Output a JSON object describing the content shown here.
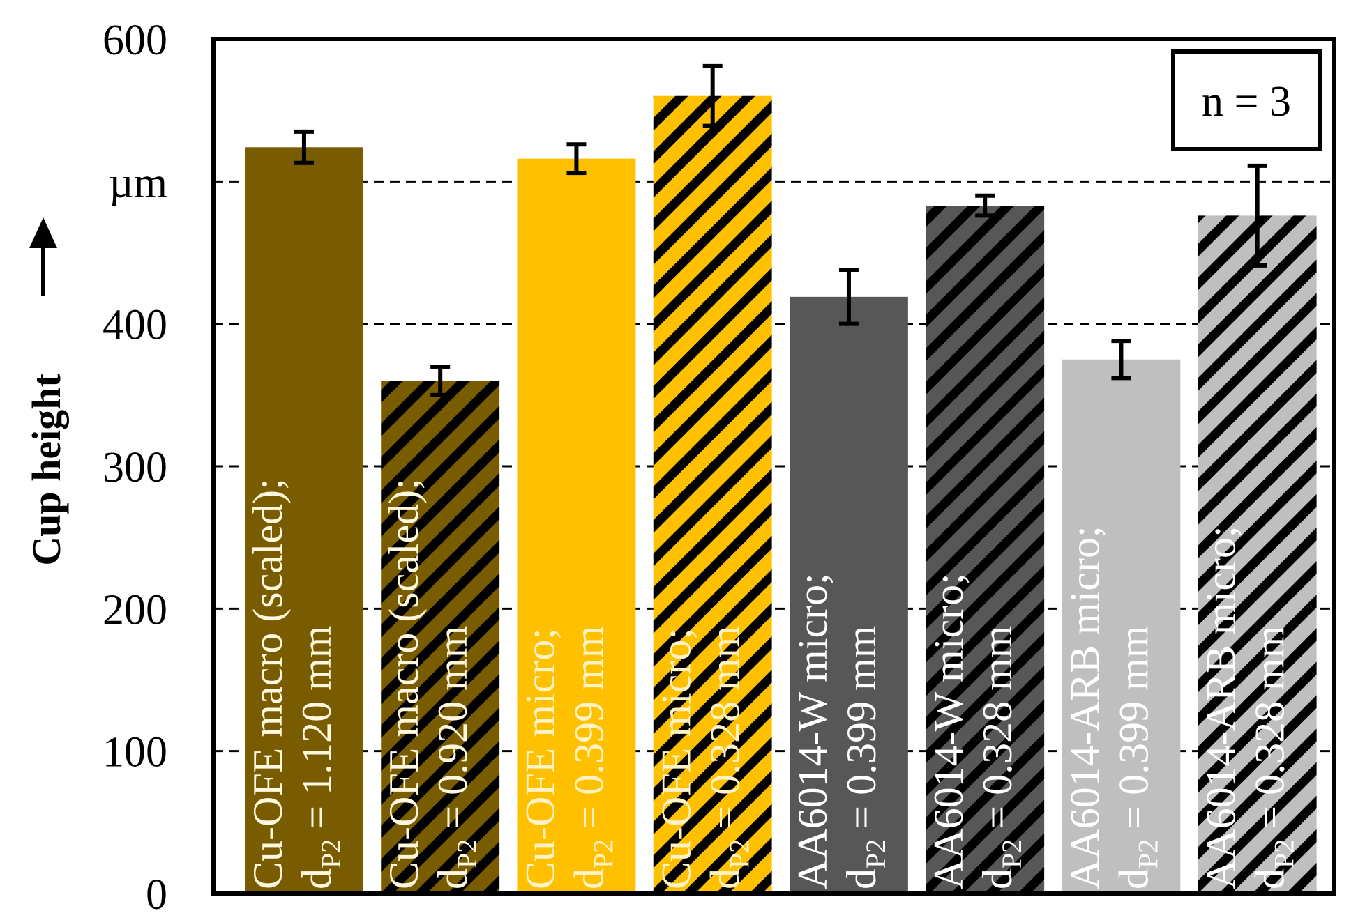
{
  "chart_data": {
    "type": "bar",
    "y_label": "Cup height",
    "annotation": "n = 3",
    "categories": [
      "Cu-OFE macro (scaled);",
      "Cu-OFE macro (scaled);",
      "Cu-OFE micro;",
      "Cu-OFE micro;",
      "AA6014-W micro;",
      "AA6014-W micro;",
      "AA6014-ARB micro;",
      "AA6014-ARB micro;"
    ],
    "category_symbol": "d",
    "category_subscript": "P2",
    "category_line2": [
      "= 1.120 mm",
      "= 0.920 mm",
      "= 0.399 mm",
      "= 0.328 mm",
      "= 0.399 mm",
      "= 0.328 mm",
      "= 0.399 mm",
      "= 0.328 mm"
    ],
    "values": [
      524,
      360,
      516,
      560,
      419,
      483,
      375,
      476
    ],
    "errors": [
      11,
      10,
      10,
      21,
      19,
      7,
      13,
      35
    ],
    "colors": [
      "#7a5c00",
      "#7a5c00",
      "#ffc000",
      "#ffc000",
      "#575757",
      "#575757",
      "#bfbfbf",
      "#bfbfbf"
    ],
    "hatched": [
      false,
      true,
      false,
      true,
      false,
      true,
      false,
      true
    ],
    "label_colors": [
      "#fff8e0",
      "#fff8e0",
      "#fff2c4",
      "#fff2c4",
      "#ffffff",
      "#ffffff",
      "#ffffff",
      "#ffffff"
    ],
    "ylim": [
      0,
      600
    ],
    "yticks": [
      0,
      100,
      200,
      300,
      400,
      {
        "value": 500,
        "label": "µm"
      },
      600
    ],
    "grid": true
  }
}
